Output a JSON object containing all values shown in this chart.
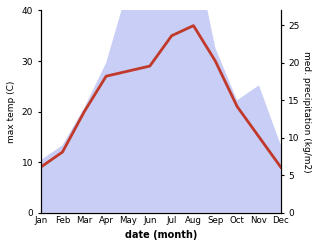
{
  "months": [
    "Jan",
    "Feb",
    "Mar",
    "Apr",
    "May",
    "Jun",
    "Jul",
    "Aug",
    "Sep",
    "Oct",
    "Nov",
    "Dec"
  ],
  "temp": [
    9,
    12,
    20,
    27,
    28,
    29,
    35,
    37,
    30,
    21,
    15,
    9
  ],
  "precip": [
    7,
    9,
    14,
    20,
    30,
    37,
    40,
    36,
    22,
    15,
    17,
    9
  ],
  "temp_color": "#c0392b",
  "precip_fill_color": "#c8cef5",
  "temp_ylim": [
    0,
    40
  ],
  "precip_ylim": [
    0,
    27
  ],
  "temp_yticks": [
    0,
    10,
    20,
    30,
    40
  ],
  "precip_yticks": [
    0,
    5,
    10,
    15,
    20,
    25
  ],
  "ylabel_left": "max temp (C)",
  "ylabel_right": "med. precipitation (kg/m2)",
  "xlabel": "date (month)",
  "line_width": 2.0,
  "precip_scale_factor": 1.5873
}
